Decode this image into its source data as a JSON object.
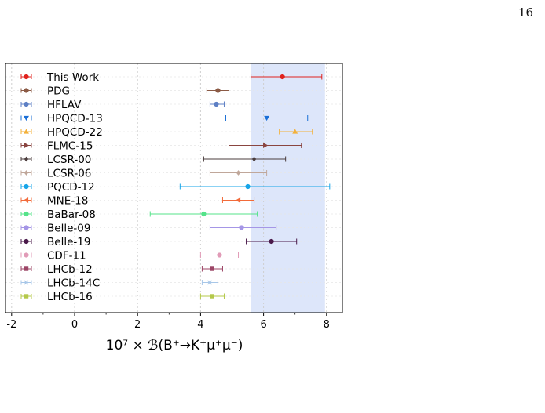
{
  "page": {
    "number": "16"
  },
  "chart_data": {
    "type": "errorbar",
    "xlabel": "10⁷ × ℬ(B⁺→K⁺μ⁺μ⁻)",
    "xlim": [
      -2,
      9
    ],
    "x_ticks": [
      -2,
      0,
      2,
      4,
      6,
      8
    ],
    "grid": true,
    "legend_location": "left",
    "highlight_band": {
      "x_range": [
        5.6,
        7.95
      ],
      "color": "#dde6fa"
    },
    "series": [
      {
        "name": "This Work",
        "value": 6.6,
        "lower": 5.6,
        "upper": 7.85,
        "color": "#e0221d",
        "marker": "circle"
      },
      {
        "name": "PDG",
        "value": 4.55,
        "lower": 4.2,
        "upper": 4.9,
        "color": "#8b5a45",
        "marker": "circle"
      },
      {
        "name": "HFLAV",
        "value": 4.5,
        "lower": 4.3,
        "upper": 4.75,
        "color": "#5d7fc4",
        "marker": "circle"
      },
      {
        "name": "HPQCD-13",
        "value": 6.1,
        "lower": 4.8,
        "upper": 7.4,
        "color": "#1a6fd6",
        "marker": "triangle-down"
      },
      {
        "name": "HPQCD-22",
        "value": 7.0,
        "lower": 6.5,
        "upper": 7.55,
        "color": "#f3b13b",
        "marker": "triangle-up"
      },
      {
        "name": "FLMC-15",
        "value": 6.05,
        "lower": 4.9,
        "upper": 7.2,
        "color": "#8a4540",
        "marker": "triangle-right"
      },
      {
        "name": "LCSR-00",
        "value": 5.7,
        "lower": 4.1,
        "upper": 6.7,
        "color": "#4b3d3d",
        "marker": "diamond"
      },
      {
        "name": "LCSR-06",
        "value": 5.2,
        "lower": 4.3,
        "upper": 6.1,
        "color": "#c0a79a",
        "marker": "diamond"
      },
      {
        "name": "PQCD-12",
        "value": 5.5,
        "lower": 3.35,
        "upper": 8.1,
        "color": "#17a5e8",
        "marker": "circle"
      },
      {
        "name": "MNE-18",
        "value": 5.2,
        "lower": 4.7,
        "upper": 5.7,
        "color": "#f26b3a",
        "marker": "triangle-left"
      },
      {
        "name": "BaBar-08",
        "value": 4.1,
        "lower": 2.4,
        "upper": 5.8,
        "color": "#55e38a",
        "marker": "circle"
      },
      {
        "name": "Belle-09",
        "value": 5.3,
        "lower": 4.3,
        "upper": 6.4,
        "color": "#a596e6",
        "marker": "circle"
      },
      {
        "name": "Belle-19",
        "value": 6.25,
        "lower": 5.45,
        "upper": 7.05,
        "color": "#4a1a4a",
        "marker": "circle"
      },
      {
        "name": "CDF-11",
        "value": 4.6,
        "lower": 4.0,
        "upper": 5.2,
        "color": "#e19bb7",
        "marker": "circle"
      },
      {
        "name": "LHCb-12",
        "value": 4.36,
        "lower": 4.05,
        "upper": 4.7,
        "color": "#9c4566",
        "marker": "square"
      },
      {
        "name": "LHCb-14C",
        "value": 4.29,
        "lower": 4.05,
        "upper": 4.55,
        "color": "#a8c7e8",
        "marker": "x"
      },
      {
        "name": "LHCb-16",
        "value": 4.37,
        "lower": 4.0,
        "upper": 4.75,
        "color": "#b4c94a",
        "marker": "square"
      }
    ]
  }
}
